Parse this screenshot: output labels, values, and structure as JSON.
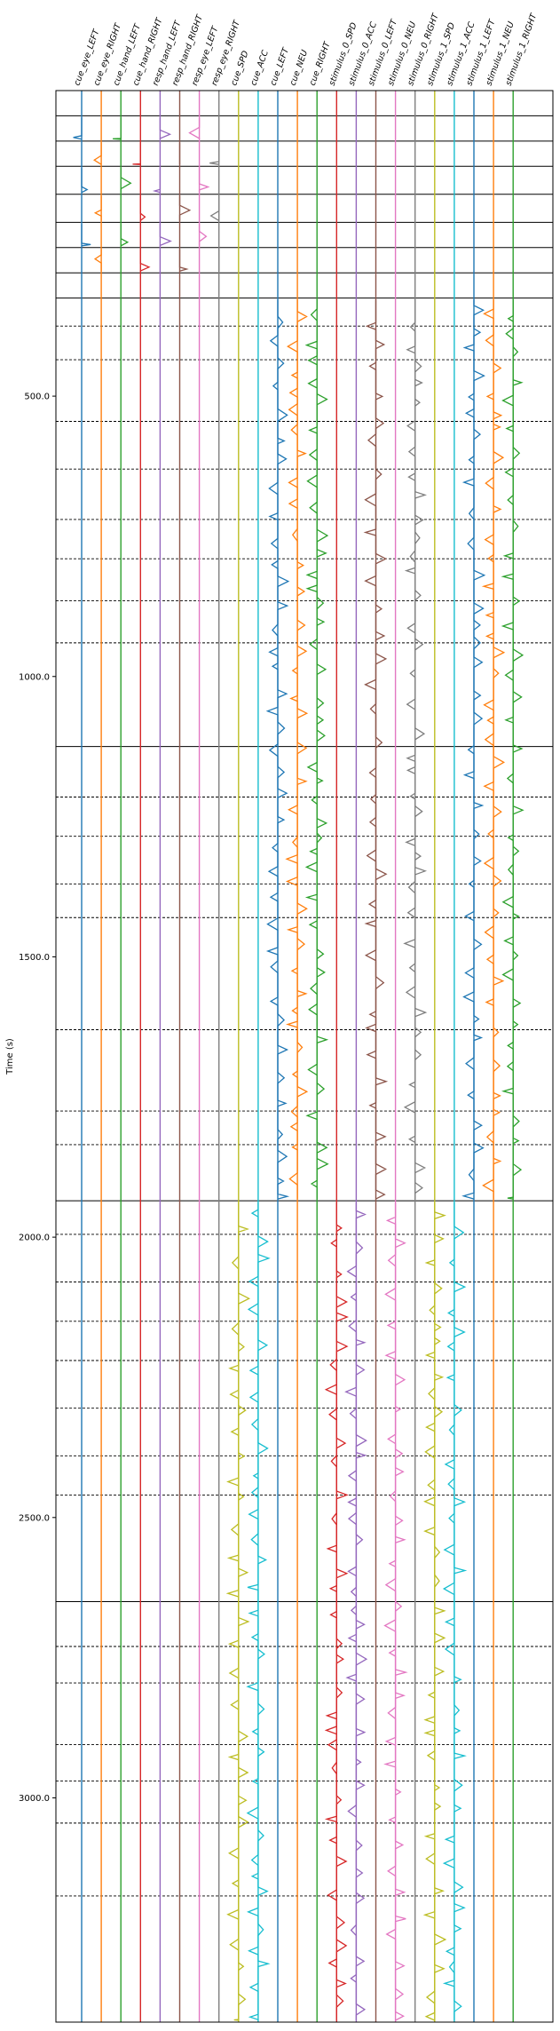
{
  "chart_data": {
    "type": "line",
    "ylabel": "Time (s)",
    "ylim": [
      3400,
      -50
    ],
    "yticks": [
      500.0,
      1000.0,
      1500.0,
      2000.0,
      2500.0,
      3000.0
    ],
    "ytick_labels": [
      "500.0",
      "1000.0",
      "1500.0",
      "2000.0",
      "2500.0",
      "3000.0"
    ],
    "series": [
      {
        "name": "cue_eye_LEFT",
        "color": "#1f77b4"
      },
      {
        "name": "cue_eye_RIGHT",
        "color": "#ff7f0e"
      },
      {
        "name": "cue_hand_LEFT",
        "color": "#2ca02c"
      },
      {
        "name": "cue_hand_RIGHT",
        "color": "#d62728"
      },
      {
        "name": "resp_hand_LEFT",
        "color": "#9467bd"
      },
      {
        "name": "resp_hand_RIGHT",
        "color": "#8c564b"
      },
      {
        "name": "resp_eye_LEFT",
        "color": "#e377c2"
      },
      {
        "name": "resp_eye_RIGHT",
        "color": "#7f7f7f"
      },
      {
        "name": "cue_SPD",
        "color": "#bcbd22"
      },
      {
        "name": "cue_ACC",
        "color": "#17becf"
      },
      {
        "name": "cue_LEFT",
        "color": "#1f77b4"
      },
      {
        "name": "cue_NEU",
        "color": "#ff7f0e"
      },
      {
        "name": "cue_RIGHT",
        "color": "#2ca02c"
      },
      {
        "name": "stimulus_0_SPD",
        "color": "#d62728"
      },
      {
        "name": "stimulus_0_ACC",
        "color": "#9467bd"
      },
      {
        "name": "stimulus_0_LEFT",
        "color": "#8c564b"
      },
      {
        "name": "stimulus_0_NEU",
        "color": "#e377c2"
      },
      {
        "name": "stimulus_0_RIGHT",
        "color": "#7f7f7f"
      },
      {
        "name": "stimulus_1_SPD",
        "color": "#bcbd22"
      },
      {
        "name": "stimulus_1_ACC",
        "color": "#17becf"
      },
      {
        "name": "stimulus_1_LEFT",
        "color": "#1f77b4"
      },
      {
        "name": "stimulus_1_NEU",
        "color": "#ff7f0e"
      },
      {
        "name": "stimulus_1_RIGHT",
        "color": "#2ca02c"
      }
    ],
    "solid_separators": [
      0,
      45,
      90,
      140,
      190,
      235,
      280,
      325,
      1125,
      1935,
      2650
    ],
    "dashed_separators": [
      375,
      435,
      545,
      630,
      720,
      790,
      865,
      940,
      1215,
      1285,
      1370,
      1430,
      1630,
      1775,
      1835,
      1995,
      2080,
      2150,
      2220,
      2305,
      2390,
      2460,
      2730,
      2795,
      2905,
      2970,
      3045,
      3175
    ],
    "segments": [
      {
        "series": [
          0,
          2,
          4,
          6
        ],
        "ranges": [
          [
            0,
            45
          ],
          [
            90,
            140
          ],
          [
            190,
            235
          ]
        ]
      },
      {
        "series": [
          1,
          3,
          5,
          7
        ],
        "ranges": [
          [
            45,
            90
          ],
          [
            140,
            190
          ],
          [
            235,
            280
          ]
        ]
      },
      {
        "series": [
          10,
          11,
          12,
          15,
          17,
          20,
          21,
          22
        ],
        "ranges": [
          [
            325,
            1935
          ]
        ]
      },
      {
        "series": [
          8,
          9,
          13,
          14,
          16,
          18,
          19
        ],
        "ranges": [
          [
            1935,
            3400
          ]
        ]
      }
    ]
  }
}
